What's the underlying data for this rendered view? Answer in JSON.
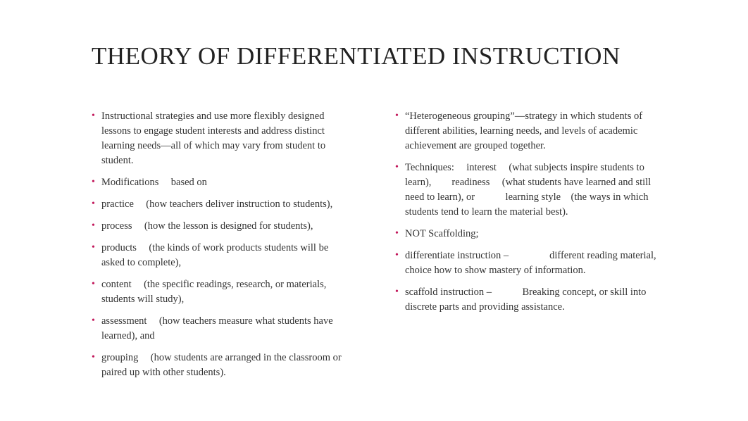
{
  "title": "THEORY OF DIFFERENTIATED INSTRUCTION",
  "colors": {
    "bullet": "#c2185b",
    "text": "#333333",
    "title": "#222222",
    "background": "#ffffff"
  },
  "left": [
    "Instructional strategies and use more flexibly designed lessons to engage student interests and address distinct learning needs—all of which may vary from student to student.",
    "Modifications  based on",
    "practice  (how teachers deliver instruction to students),",
    "process  (how the lesson is designed for students),",
    "products  (the kinds of work products students will be asked to complete),",
    "content  (the specific readings, research, or materials, students will study),",
    "assessment  (how teachers measure what students have learned), and",
    "grouping  (how students are arranged in the classroom or paired up with other students)."
  ],
  "right": [
    "“Heterogeneous grouping”—strategy in which students of different abilities, learning needs, and levels of academic achievement are grouped together.",
    "Techniques:  interest  (what subjects inspire students to learn),  readiness  (what students have learned and still need to learn), or   learning style (the ways in which students tend to learn the material best).",
    "NOT Scaffolding;",
    "differentiate instruction –    different reading material, choice how to show mastery of information.",
    "scaffold instruction –   Breaking concept, or skill into discrete parts and providing assistance."
  ]
}
